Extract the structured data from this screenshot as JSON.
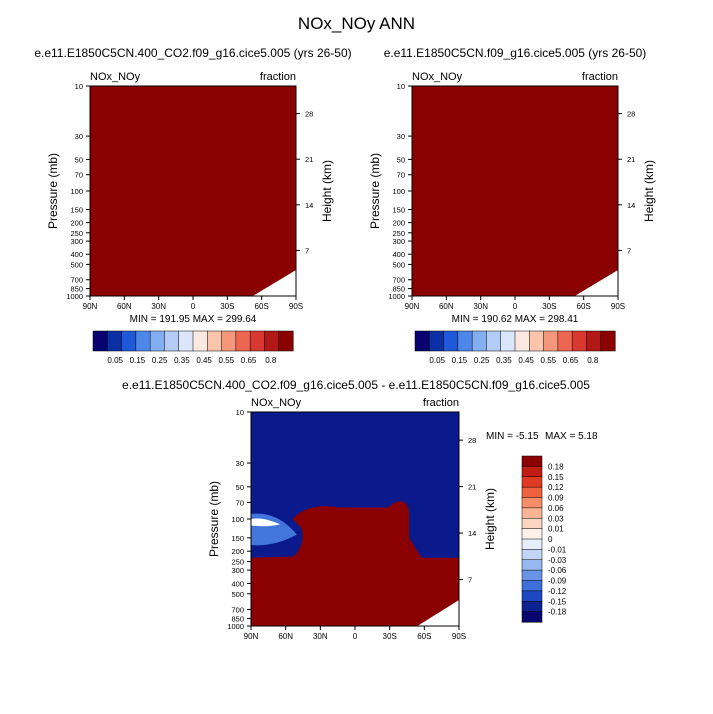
{
  "page_title": "NOx_NOy ANN",
  "colors": {
    "panel_fill": "#8b0000",
    "diff_pos": "#8b0000",
    "diff_neg": "#0a1a8c"
  },
  "chart_data": [
    {
      "type": "heatmap",
      "title": "e.e11.E1850C5CN.400_CO2.f09_g16.cice5.005 (yrs 26-50)",
      "left_label": "NOx_NOy",
      "right_label": "fraction",
      "ylabel": "Pressure (mb)",
      "y2label": "Height (km)",
      "x_ticks": [
        "90N",
        "60N",
        "30N",
        "0",
        "30S",
        "60S",
        "90S"
      ],
      "y_ticks": [
        "10",
        "30",
        "50",
        "70",
        "100",
        "150",
        "200",
        "250",
        "300",
        "400",
        "500",
        "700",
        "850",
        "1000"
      ],
      "y2_ticks": [
        "28",
        "21",
        "14",
        "7"
      ],
      "stats": "MIN = 191.95  MAX = 299.64",
      "colorbar_labels": [
        "0.05",
        "0.15",
        "0.25",
        "0.35",
        "0.45",
        "0.55",
        "0.65",
        "0.8"
      ],
      "colorbar_colors": [
        "#08036e",
        "#0b2fa5",
        "#1f58d8",
        "#4e87ea",
        "#83aef2",
        "#b3ccf6",
        "#dbe6fa",
        "#fbe9e1",
        "#fac4ad",
        "#f5977a",
        "#ec6651",
        "#d8382f",
        "#b21816",
        "#8b0000"
      ]
    },
    {
      "type": "heatmap",
      "title": "e.e11.E1850C5CN.f09_g16.cice5.005 (yrs 26-50)",
      "left_label": "NOx_NOy",
      "right_label": "fraction",
      "ylabel": "Pressure (mb)",
      "y2label": "Height (km)",
      "x_ticks": [
        "90N",
        "60N",
        "30N",
        "0",
        "30S",
        "60S",
        "90S"
      ],
      "y_ticks": [
        "10",
        "30",
        "50",
        "70",
        "100",
        "150",
        "200",
        "250",
        "300",
        "400",
        "500",
        "700",
        "850",
        "1000"
      ],
      "y2_ticks": [
        "28",
        "21",
        "14",
        "7"
      ],
      "stats": "MIN = 190.62  MAX = 298.41",
      "colorbar_labels": [
        "0.05",
        "0.15",
        "0.25",
        "0.35",
        "0.45",
        "0.55",
        "0.65",
        "0.8"
      ],
      "colorbar_colors": [
        "#08036e",
        "#0b2fa5",
        "#1f58d8",
        "#4e87ea",
        "#83aef2",
        "#b3ccf6",
        "#dbe6fa",
        "#fbe9e1",
        "#fac4ad",
        "#f5977a",
        "#ec6651",
        "#d8382f",
        "#b21816",
        "#8b0000"
      ]
    },
    {
      "type": "heatmap",
      "title": "e.e11.E1850C5CN.400_CO2.f09_g16.cice5.005 - e.e11.E1850C5CN.f09_g16.cice5.005",
      "left_label": "NOx_NOy",
      "right_label": "fraction",
      "ylabel": "Pressure (mb)",
      "y2label": "Height (km)",
      "x_ticks": [
        "90N",
        "60N",
        "30N",
        "0",
        "30S",
        "60S",
        "90S"
      ],
      "y_ticks": [
        "10",
        "30",
        "50",
        "70",
        "100",
        "150",
        "200",
        "250",
        "300",
        "400",
        "500",
        "700",
        "850",
        "1000"
      ],
      "y2_ticks": [
        "28",
        "21",
        "14",
        "7"
      ],
      "stats_min": "MIN =  -5.15",
      "stats_max": "MAX =   5.18",
      "colorbar_labels": [
        "0.18",
        "0.15",
        "0.12",
        "0.09",
        "0.06",
        "0.03",
        "0.01",
        "0",
        "-0.01",
        "-0.03",
        "-0.06",
        "-0.09",
        "-0.12",
        "-0.15",
        "-0.18"
      ],
      "colorbar_colors": [
        "#8b0000",
        "#c11d12",
        "#e03a22",
        "#f0623d",
        "#f78d68",
        "#fbb494",
        "#fcd6c3",
        "#fdf1ea",
        "#e6eefb",
        "#c2d5f6",
        "#96b7ef",
        "#6a95e6",
        "#3d70d9",
        "#1d47bf",
        "#0b228f",
        "#08036e"
      ]
    }
  ]
}
